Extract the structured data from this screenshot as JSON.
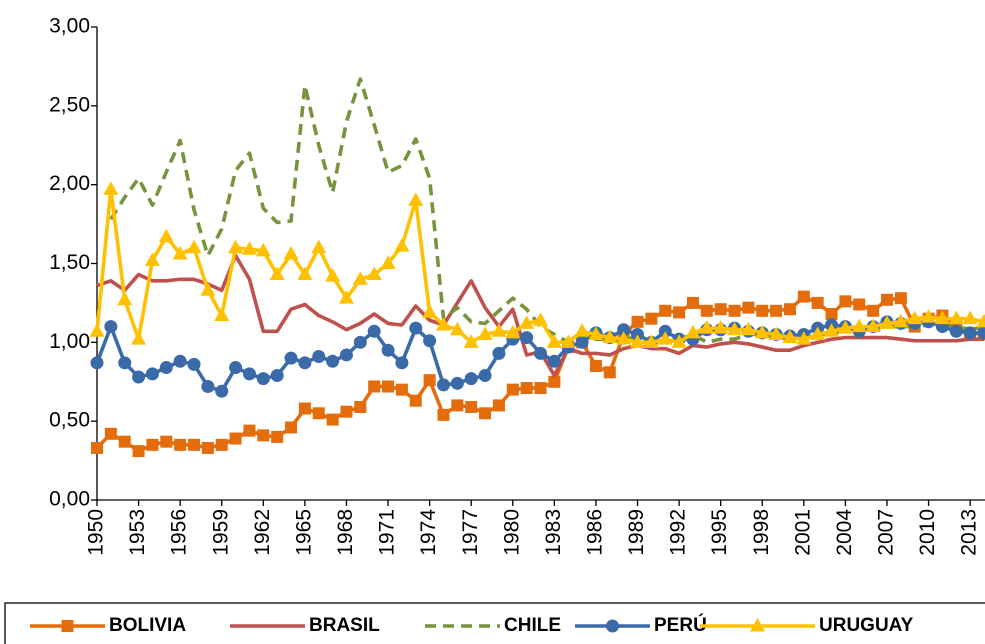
{
  "chart_data": {
    "type": "line",
    "x": [
      1950,
      1951,
      1952,
      1953,
      1954,
      1955,
      1956,
      1957,
      1958,
      1959,
      1960,
      1961,
      1962,
      1963,
      1964,
      1965,
      1966,
      1967,
      1968,
      1969,
      1970,
      1971,
      1972,
      1973,
      1974,
      1975,
      1976,
      1977,
      1978,
      1979,
      1980,
      1981,
      1982,
      1983,
      1984,
      1985,
      1986,
      1987,
      1988,
      1989,
      1990,
      1991,
      1992,
      1993,
      1994,
      1995,
      1996,
      1997,
      1998,
      1999,
      2000,
      2001,
      2002,
      2003,
      2004,
      2005,
      2006,
      2007,
      2008,
      2009,
      2010,
      2011,
      2012,
      2013,
      2014
    ],
    "xlim": [
      1950,
      2014
    ],
    "xticks": [
      1950,
      1953,
      1956,
      1959,
      1962,
      1965,
      1968,
      1971,
      1974,
      1977,
      1980,
      1983,
      1986,
      1989,
      1992,
      1995,
      1998,
      2001,
      2004,
      2007,
      2010,
      2013
    ],
    "ylim": [
      0,
      3
    ],
    "yticks": [
      {
        "value": 0,
        "label": "0,00"
      },
      {
        "value": 0.5,
        "label": "0,50"
      },
      {
        "value": 1,
        "label": "1,00"
      },
      {
        "value": 1.5,
        "label": "1,50"
      },
      {
        "value": 2,
        "label": "2,00"
      },
      {
        "value": 2.5,
        "label": "2,50"
      },
      {
        "value": 3,
        "label": "3,00"
      }
    ],
    "grid": false,
    "legend": "bottom",
    "series": [
      {
        "name": "BOLIVIA",
        "color": "#e46c0a",
        "marker": "square",
        "dashed": false,
        "values": [
          0.33,
          0.42,
          0.37,
          0.31,
          0.35,
          0.37,
          0.35,
          0.35,
          0.33,
          0.35,
          0.39,
          0.44,
          0.41,
          0.4,
          0.46,
          0.58,
          0.55,
          0.51,
          0.56,
          0.59,
          0.72,
          0.72,
          0.7,
          0.63,
          0.76,
          0.54,
          0.6,
          0.59,
          0.55,
          0.6,
          0.7,
          0.71,
          0.71,
          0.75,
          0.97,
          1.0,
          0.85,
          0.81,
          1.05,
          1.13,
          1.15,
          1.2,
          1.19,
          1.25,
          1.2,
          1.21,
          1.2,
          1.22,
          1.2,
          1.2,
          1.21,
          1.29,
          1.25,
          1.18,
          1.26,
          1.24,
          1.2,
          1.27,
          1.28,
          1.1,
          1.15,
          1.17,
          1.1,
          1.06,
          1.05
        ]
      },
      {
        "name": "BRASIL",
        "color": "#c0504d",
        "marker": "none",
        "dashed": false,
        "values": [
          1.36,
          1.39,
          1.33,
          1.43,
          1.39,
          1.39,
          1.4,
          1.4,
          1.37,
          1.33,
          1.55,
          1.4,
          1.07,
          1.07,
          1.21,
          1.24,
          1.17,
          1.13,
          1.08,
          1.12,
          1.18,
          1.12,
          1.11,
          1.23,
          1.14,
          1.11,
          1.25,
          1.39,
          1.22,
          1.1,
          1.21,
          0.92,
          0.94,
          0.79,
          0.96,
          0.93,
          0.93,
          0.92,
          0.96,
          0.98,
          0.96,
          0.96,
          0.93,
          0.98,
          0.97,
          0.99,
          1.0,
          0.99,
          0.97,
          0.95,
          0.95,
          0.98,
          1.0,
          1.02,
          1.03,
          1.03,
          1.03,
          1.03,
          1.02,
          1.01,
          1.01,
          1.01,
          1.01,
          1.02,
          1.02
        ]
      },
      {
        "name": "CHILE",
        "color": "#77933c",
        "marker": "none",
        "dashed": true,
        "values": [
          null,
          1.78,
          1.92,
          2.04,
          1.87,
          2.08,
          2.28,
          1.84,
          1.55,
          1.72,
          2.09,
          2.2,
          1.85,
          1.76,
          1.77,
          2.63,
          2.25,
          1.95,
          2.4,
          2.67,
          2.38,
          2.08,
          2.12,
          2.29,
          2.04,
          1.15,
          1.22,
          1.13,
          1.12,
          1.2,
          1.28,
          1.21,
          1.1,
          1.05,
          1.0,
          1.05,
          1.02,
          1.02,
          1.0,
          1.05,
          1.0,
          1.0,
          1.02,
          1.05,
          1.0,
          1.02,
          1.02,
          1.05,
          1.05,
          1.03,
          1.02,
          1.02,
          1.05,
          1.05,
          1.08,
          1.1,
          1.07,
          1.1,
          1.1,
          1.1,
          1.11,
          1.12,
          1.1,
          1.08,
          1.1
        ]
      },
      {
        "name": "PERÚ",
        "color": "#3a6aa8",
        "marker": "circle",
        "dashed": false,
        "values": [
          0.87,
          1.1,
          0.87,
          0.78,
          0.8,
          0.84,
          0.88,
          0.86,
          0.72,
          0.69,
          0.84,
          0.8,
          0.77,
          0.79,
          0.9,
          0.87,
          0.91,
          0.88,
          0.92,
          1.0,
          1.07,
          0.95,
          0.87,
          1.09,
          1.01,
          0.73,
          0.74,
          0.77,
          0.79,
          0.93,
          1.02,
          1.03,
          0.93,
          0.88,
          0.97,
          1.0,
          1.06,
          1.03,
          1.08,
          1.05,
          1.0,
          1.07,
          1.02,
          1.02,
          1.08,
          1.08,
          1.09,
          1.07,
          1.06,
          1.05,
          1.04,
          1.05,
          1.09,
          1.11,
          1.1,
          1.07,
          1.1,
          1.13,
          1.12,
          1.12,
          1.13,
          1.1,
          1.07,
          1.06,
          1.06
        ]
      },
      {
        "name": "URUGUAY",
        "color": "#ffc000",
        "marker": "triangle",
        "dashed": false,
        "values": [
          1.07,
          1.97,
          1.27,
          1.02,
          1.52,
          1.67,
          1.56,
          1.6,
          1.33,
          1.17,
          1.6,
          1.59,
          1.58,
          1.43,
          1.56,
          1.43,
          1.6,
          1.42,
          1.28,
          1.4,
          1.43,
          1.5,
          1.61,
          1.9,
          1.19,
          1.11,
          1.08,
          1.0,
          1.05,
          1.07,
          1.06,
          1.12,
          1.14,
          1.0,
          1.0,
          1.07,
          1.05,
          1.03,
          1.02,
          1.0,
          1.0,
          1.02,
          1.0,
          1.06,
          1.09,
          1.09,
          1.08,
          1.08,
          1.06,
          1.05,
          1.03,
          1.02,
          1.05,
          1.07,
          1.09,
          1.1,
          1.1,
          1.12,
          1.13,
          1.15,
          1.16,
          1.15,
          1.15,
          1.15,
          1.13
        ]
      }
    ]
  }
}
